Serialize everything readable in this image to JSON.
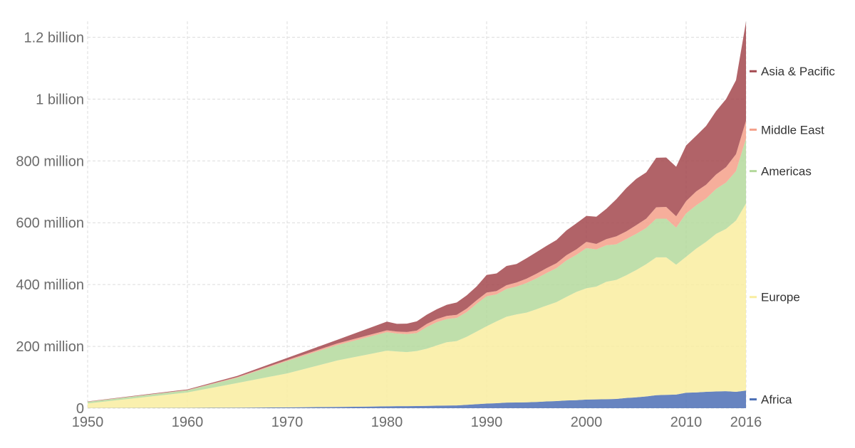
{
  "chart_data": {
    "type": "area",
    "stacked": true,
    "title": "",
    "xlabel": "",
    "ylabel": "",
    "xlim": [
      1950,
      2016
    ],
    "ylim": [
      0,
      1240000000
    ],
    "grid": true,
    "legend_placement": "right, inline at series end",
    "x_ticks": [
      1950,
      1960,
      1970,
      1980,
      1990,
      2000,
      2010,
      2016
    ],
    "x_tick_labels": [
      "1950",
      "1960",
      "1970",
      "1980",
      "1990",
      "2000",
      "2010",
      "2016"
    ],
    "y_ticks": [
      0,
      200000000,
      400000000,
      600000000,
      800000000,
      1000000000,
      1200000000
    ],
    "y_tick_labels": [
      "0",
      "200 million",
      "400 million",
      "600 million",
      "800 million",
      "1 billion",
      "1.2 billion"
    ],
    "x": [
      1950,
      1960,
      1965,
      1970,
      1975,
      1980,
      1981,
      1982,
      1983,
      1984,
      1985,
      1986,
      1987,
      1988,
      1989,
      1990,
      1991,
      1992,
      1993,
      1994,
      1995,
      1996,
      1997,
      1998,
      1999,
      2000,
      2001,
      2002,
      2003,
      2004,
      2005,
      2006,
      2007,
      2008,
      2009,
      2010,
      2011,
      2012,
      2013,
      2014,
      2015,
      2016
    ],
    "series": [
      {
        "name": "Africa",
        "color": "#4c6fb5",
        "values": [
          0.5,
          0.8,
          1.5,
          2.5,
          4,
          6,
          6.5,
          6.5,
          7,
          7.5,
          8,
          8.5,
          9,
          11,
          13,
          15,
          16,
          18,
          18.5,
          19,
          20,
          22,
          23,
          25,
          26,
          28,
          28.5,
          29,
          30,
          33,
          35,
          38,
          42,
          43,
          44,
          50,
          51,
          53,
          54,
          55,
          53,
          57
        ]
      },
      {
        "name": "Europe",
        "color": "#f9eda0",
        "values": [
          15,
          50,
          80,
          110,
          150,
          180,
          177,
          175,
          178,
          185,
          195,
          205,
          208,
          220,
          235,
          250,
          265,
          278,
          285,
          290,
          300,
          310,
          320,
          335,
          350,
          360,
          365,
          380,
          385,
          397,
          412,
          428,
          446,
          445,
          420,
          440,
          465,
          485,
          510,
          525,
          554,
          605
        ]
      },
      {
        "name": "Americas",
        "color": "#b4d99c",
        "values": [
          5,
          7,
          17,
          40,
          50,
          60,
          58,
          58,
          58,
          70,
          75,
          75,
          75,
          80,
          90,
          97,
          87,
          90,
          90,
          96,
          100,
          105,
          110,
          118,
          120,
          130,
          120,
          118,
          115,
          117,
          117,
          117,
          125,
          125,
          120,
          140,
          140,
          140,
          145,
          150,
          160,
          210
        ]
      },
      {
        "name": "Middle East",
        "color": "#f4a08a",
        "values": [
          0.5,
          1,
          2,
          3,
          5,
          6,
          6.5,
          7,
          8,
          10,
          10,
          10,
          10,
          11,
          11,
          12,
          11,
          12,
          13,
          14,
          15,
          16,
          16,
          17,
          18,
          20,
          18,
          20,
          26,
          25,
          28,
          30,
          37,
          38,
          37,
          40,
          45,
          45,
          47,
          50,
          55,
          58
        ]
      },
      {
        "name": "Asia & Pacific",
        "color": "#a3484e",
        "values": [
          1,
          2,
          4,
          7,
          12,
          28,
          25,
          27,
          30,
          30,
          32,
          36,
          40,
          43,
          45,
          57,
          57,
          62,
          60,
          66,
          70,
          72,
          75,
          80,
          84,
          84,
          88,
          98,
          120,
          140,
          150,
          150,
          160,
          160,
          160,
          180,
          180,
          190,
          205,
          220,
          239,
          320
        ]
      }
    ],
    "legend": [
      "Asia & Pacific",
      "Middle East",
      "Americas",
      "Europe",
      "Africa"
    ],
    "value_unit_multiplier": 1000000
  }
}
